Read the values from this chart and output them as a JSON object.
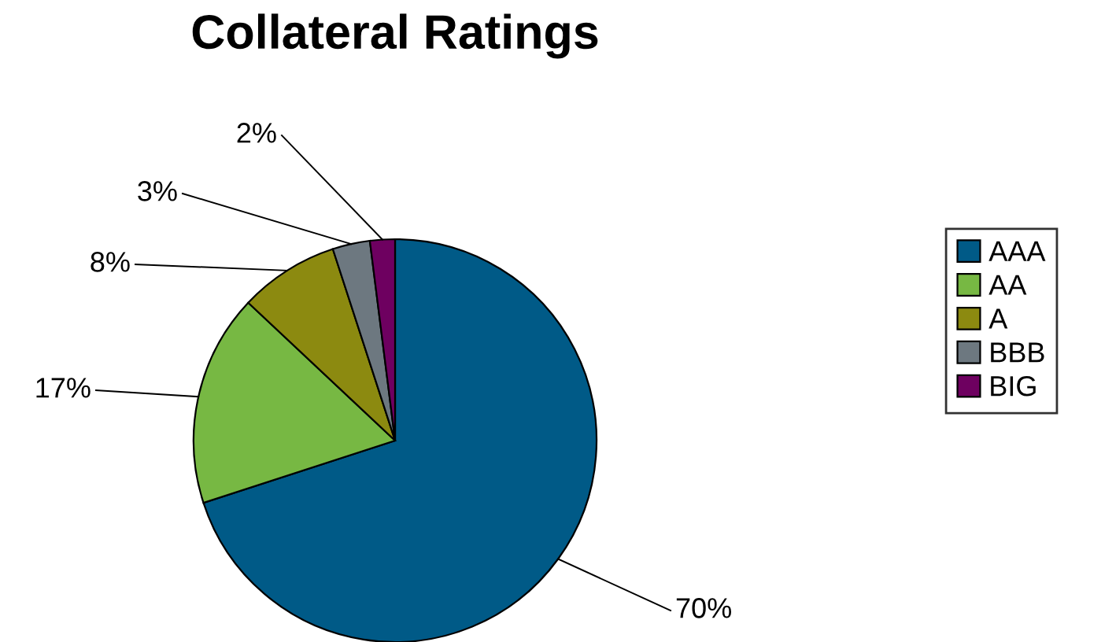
{
  "chart_data": {
    "type": "pie",
    "title": "Collateral Ratings",
    "categories": [
      "AAA",
      "AA",
      "A",
      "BBB",
      "BIG"
    ],
    "values": [
      70,
      17,
      8,
      3,
      2
    ],
    "colors": [
      "#005a87",
      "#77b843",
      "#8c8a10",
      "#6d7880",
      "#6e0060"
    ],
    "value_labels": [
      "70%",
      "17%",
      "8%",
      "3%",
      "2%"
    ],
    "legend": "right"
  }
}
